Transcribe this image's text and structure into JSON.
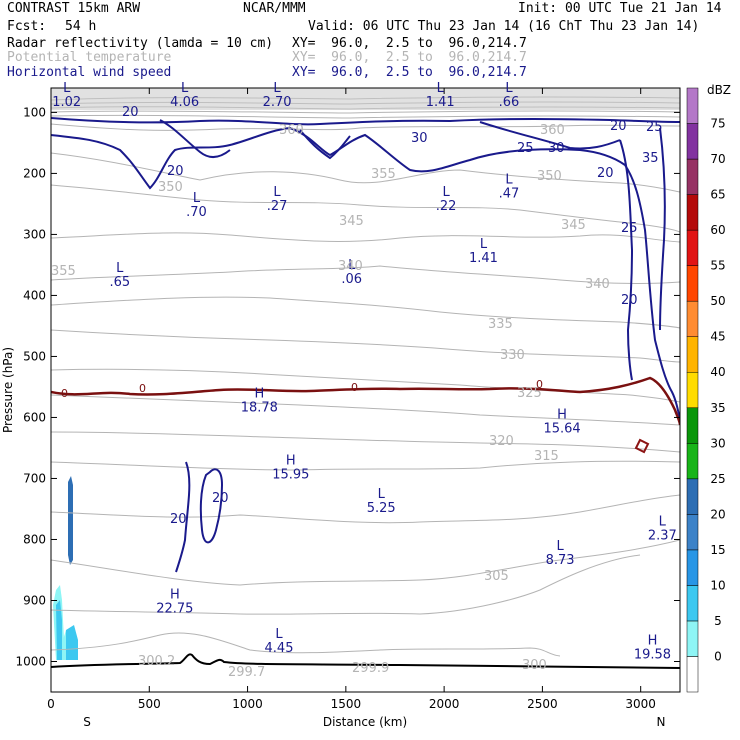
{
  "header": {
    "model": "CONTRAST 15km ARW",
    "center": "NCAR/MMM",
    "init": "Init: 00 UTC Tue 21 Jan 14",
    "fcst_label": "Fcst:",
    "fcst_value": "54 h",
    "valid": "Valid: 06 UTC Thu 23 Jan 14 (16 ChT Thu 23 Jan 14)",
    "fields": [
      {
        "name": "Radar reflectivity (lamda = 10 cm)",
        "coords": "XY=  96.0,  2.5 to  96.0,214.7",
        "color": "#000000"
      },
      {
        "name": "Potential temperature",
        "coords": "XY=  96.0,  2.5 to  96.0,214.7",
        "color": "#b4b4b4"
      },
      {
        "name": "Horizontal wind speed",
        "coords": "XY=  96.0,  2.5 to  96.0,214.7",
        "color": "#1a1a8c"
      }
    ]
  },
  "chart_data": {
    "type": "contour-cross-section",
    "xlabel": "Distance (km)",
    "ylabel": "Pressure (hPa)",
    "xlim": [
      0,
      3200
    ],
    "ylim": [
      1050,
      60
    ],
    "x_ticks": [
      0,
      500,
      1000,
      1500,
      2000,
      2500,
      3000
    ],
    "y_ticks": [
      100,
      200,
      300,
      400,
      500,
      600,
      700,
      800,
      900,
      1000
    ],
    "end_labels": {
      "left": "S",
      "right": "N"
    },
    "colorbar": {
      "unit": "dBZ",
      "levels": [
        0,
        5,
        10,
        15,
        20,
        25,
        30,
        35,
        40,
        45,
        50,
        55,
        60,
        65,
        70,
        75
      ],
      "colors": [
        "#ffffff",
        "#8ef5f5",
        "#3cc8f0",
        "#2896e6",
        "#3c82c8",
        "#2d6eb4",
        "#19b419",
        "#0a960a",
        "#ffdc00",
        "#ffb400",
        "#ff8c32",
        "#ff4600",
        "#e11414",
        "#b40a0a",
        "#963264",
        "#8232a0",
        "#b478c8"
      ]
    },
    "wind_speed_markers": [
      {
        "kind": "L",
        "value": "1.02",
        "x": 80,
        "p": 80
      },
      {
        "kind": "L",
        "value": "4.06",
        "x": 680,
        "p": 80
      },
      {
        "kind": "L",
        "value": "2.70",
        "x": 1150,
        "p": 80
      },
      {
        "kind": "L",
        "value": "1.41",
        "x": 1980,
        "p": 80
      },
      {
        "kind": "L",
        "value": ".66",
        "x": 2330,
        "p": 80
      },
      {
        "kind": "L",
        "value": ".70",
        "x": 740,
        "p": 260
      },
      {
        "kind": "L",
        "value": ".27",
        "x": 1150,
        "p": 250
      },
      {
        "kind": "L",
        "value": ".22",
        "x": 2010,
        "p": 250
      },
      {
        "kind": "L",
        "value": ".47",
        "x": 2330,
        "p": 230
      },
      {
        "kind": "L",
        "value": ".65",
        "x": 350,
        "p": 375
      },
      {
        "kind": "L",
        "value": ".06",
        "x": 1530,
        "p": 370
      },
      {
        "kind": "L",
        "value": "1.41",
        "x": 2200,
        "p": 335
      },
      {
        "kind": "H",
        "value": "18.78",
        "x": 1060,
        "p": 580
      },
      {
        "kind": "H",
        "value": "15.64",
        "x": 2600,
        "p": 615
      },
      {
        "kind": "H",
        "value": "15.95",
        "x": 1220,
        "p": 690
      },
      {
        "kind": "L",
        "value": "5.25",
        "x": 1680,
        "p": 745
      },
      {
        "kind": "L",
        "value": "8.73",
        "x": 2590,
        "p": 830
      },
      {
        "kind": "L",
        "value": "2.37",
        "x": 3110,
        "p": 790
      },
      {
        "kind": "H",
        "value": "22.75",
        "x": 630,
        "p": 910
      },
      {
        "kind": "L",
        "value": "4.45",
        "x": 1160,
        "p": 975
      },
      {
        "kind": "H",
        "value": "19.58",
        "x": 3060,
        "p": 985
      }
    ],
    "wind_contour_labels": [
      "20",
      "25",
      "30",
      "35"
    ],
    "theta_labels": [
      "300.2",
      "299.7",
      "299.9",
      "300",
      "305",
      "315",
      "320",
      "325",
      "330",
      "335",
      "340",
      "345",
      "350",
      "355",
      "360"
    ],
    "freezing_level_label": "0",
    "freezing_level_p": 555
  }
}
